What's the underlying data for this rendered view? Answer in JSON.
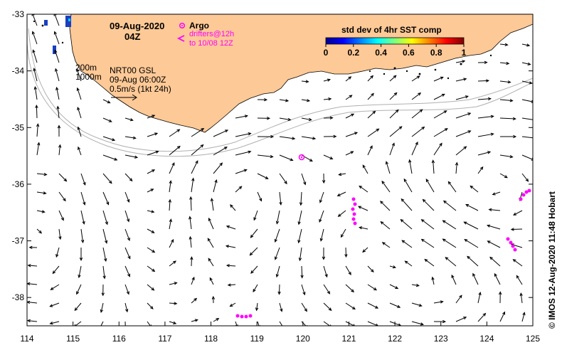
{
  "header": {
    "date": "09-Aug-2020",
    "hour": "04Z"
  },
  "legend": {
    "argo_label": "Argo",
    "drifters_line1": "drifters@12h",
    "drifters_line2": "to 10/08 12Z",
    "argo_color": "#ff00ff"
  },
  "colorbar": {
    "title": "std dev of 4hr SST comp",
    "ticks": [
      "0",
      "0.2",
      "0.4",
      "0.6",
      "0.8",
      "1"
    ],
    "range": [
      0,
      1
    ]
  },
  "info": {
    "isobath1": "200m",
    "isobath2": "1000m",
    "product": "NRT00 GSL",
    "time": "09-Aug 06:00Z",
    "scale": "0.5m/s (1kt 24h)"
  },
  "credit": "© IMOS 12-Aug-2020 11:48 Hobart",
  "axes": {
    "x_ticks": [
      "114",
      "115",
      "116",
      "117",
      "118",
      "119",
      "120",
      "121",
      "122",
      "123",
      "124",
      "125"
    ],
    "y_ticks": [
      "-33",
      "-34",
      "-35",
      "-36",
      "-37",
      "-38"
    ],
    "lon_range": [
      114,
      125
    ],
    "lat_range": [
      -38.5,
      -33
    ]
  },
  "colors": {
    "land": "#fdc996",
    "argo": "#ff00ff",
    "isobath": "#b0b0b0"
  }
}
